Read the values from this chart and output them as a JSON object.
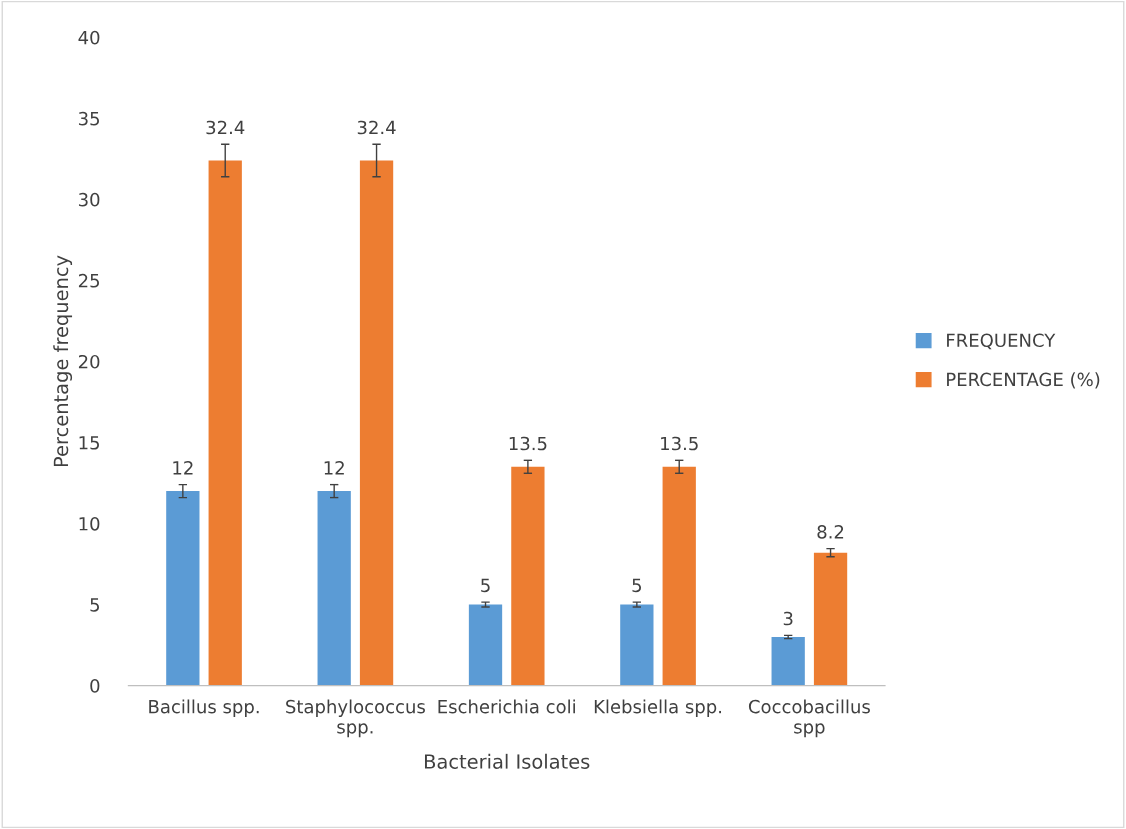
{
  "chart_data": {
    "type": "bar",
    "xlabel": "Bacterial Isolates",
    "ylabel": "Percentage frequency",
    "categories": [
      "Bacillus spp.",
      "Staphylococcus\nspp.",
      "Escherichia coli",
      "Klebsiella spp.",
      "Coccobacillus\nspp"
    ],
    "series": [
      {
        "name": "FREQUENCY",
        "color": "#5b9bd5",
        "values": [
          12,
          12,
          5,
          5,
          3
        ],
        "errors": [
          0.4,
          0.4,
          0.15,
          0.15,
          0.1
        ]
      },
      {
        "name": "PERCENTAGE (%)",
        "color": "#ed7d31",
        "values": [
          32.4,
          32.4,
          13.5,
          13.5,
          8.2
        ],
        "errors": [
          1,
          1,
          0.4,
          0.4,
          0.25
        ]
      }
    ],
    "ylim": [
      0,
      40
    ],
    "yticks": [
      0,
      5,
      10,
      15,
      20,
      25,
      30,
      35,
      40
    ],
    "grid": false,
    "legend": "right",
    "data_labels": true
  }
}
